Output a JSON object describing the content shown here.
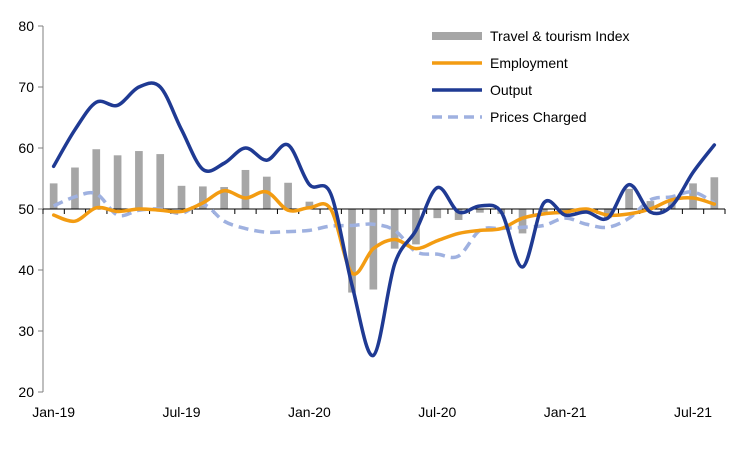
{
  "chart_data": {
    "type": "line",
    "title": "",
    "xlabel": "",
    "ylabel": "",
    "ylim": [
      20,
      80
    ],
    "yticks": [
      20,
      30,
      40,
      50,
      60,
      70,
      80
    ],
    "baseline": 50,
    "grid": false,
    "legend_position": "top-right",
    "x_tick_labels": [
      "Jan-19",
      "Jul-19",
      "Jan-20",
      "Jul-20",
      "Jan-21",
      "Jul-21"
    ],
    "x_tick_indices": [
      0,
      6,
      12,
      18,
      24,
      30
    ],
    "months": [
      "Jan-19",
      "Feb-19",
      "Mar-19",
      "Apr-19",
      "May-19",
      "Jun-19",
      "Jul-19",
      "Aug-19",
      "Sep-19",
      "Oct-19",
      "Nov-19",
      "Dec-19",
      "Jan-20",
      "Feb-20",
      "Mar-20",
      "Apr-20",
      "May-20",
      "Jun-20",
      "Jul-20",
      "Aug-20",
      "Sep-20",
      "Oct-20",
      "Nov-20",
      "Dec-20",
      "Jan-21",
      "Feb-21",
      "Mar-21",
      "Apr-21",
      "May-21",
      "Jun-21",
      "Jul-21",
      "Aug-21"
    ],
    "bar_series": {
      "name": "Travel & tourism Index",
      "color": "#a6a6a6",
      "values": [
        54.2,
        56.8,
        59.8,
        58.8,
        59.5,
        59.0,
        53.8,
        53.7,
        53.6,
        56.4,
        55.3,
        54.3,
        51.2,
        50.2,
        36.3,
        36.8,
        43.5,
        44.2,
        48.5,
        48.2,
        49.4,
        49.2,
        46.0,
        49.5,
        49.3,
        49.4,
        48.5,
        53.3,
        51.3,
        51.5,
        54.2,
        55.2
      ]
    },
    "series": [
      {
        "name": "Employment",
        "color": "#f39c12",
        "style": "solid",
        "values": [
          49.0,
          48.0,
          50.2,
          49.6,
          50.0,
          49.8,
          49.6,
          51.0,
          53.0,
          51.8,
          52.8,
          49.8,
          50.2,
          50.0,
          39.5,
          43.5,
          45.0,
          43.5,
          44.8,
          46.0,
          46.5,
          46.8,
          48.5,
          49.2,
          49.5,
          50.0,
          49.0,
          49.2,
          50.0,
          51.5,
          51.8,
          50.8
        ]
      },
      {
        "name": "Output",
        "color": "#1f3a93",
        "style": "solid",
        "values": [
          57.0,
          63.0,
          67.5,
          67.0,
          70.0,
          70.0,
          63.0,
          56.5,
          57.5,
          60.0,
          58.0,
          60.5,
          54.0,
          52.5,
          37.5,
          26.0,
          41.0,
          46.5,
          53.5,
          49.5,
          50.5,
          49.5,
          40.5,
          51.0,
          49.0,
          49.5,
          48.5,
          54.0,
          49.5,
          50.5,
          56.0,
          60.5
        ]
      },
      {
        "name": "Prices Charged",
        "color": "#9fb1e0",
        "style": "dashed",
        "values": [
          50.5,
          52.0,
          52.5,
          49.0,
          49.8,
          50.0,
          49.3,
          50.8,
          48.0,
          46.8,
          46.2,
          46.3,
          46.5,
          47.2,
          47.3,
          47.5,
          46.5,
          43.0,
          42.6,
          42.3,
          46.5,
          46.8,
          47.0,
          47.3,
          48.5,
          47.5,
          47.0,
          48.5,
          51.5,
          52.0,
          52.8,
          51.0
        ]
      }
    ]
  }
}
